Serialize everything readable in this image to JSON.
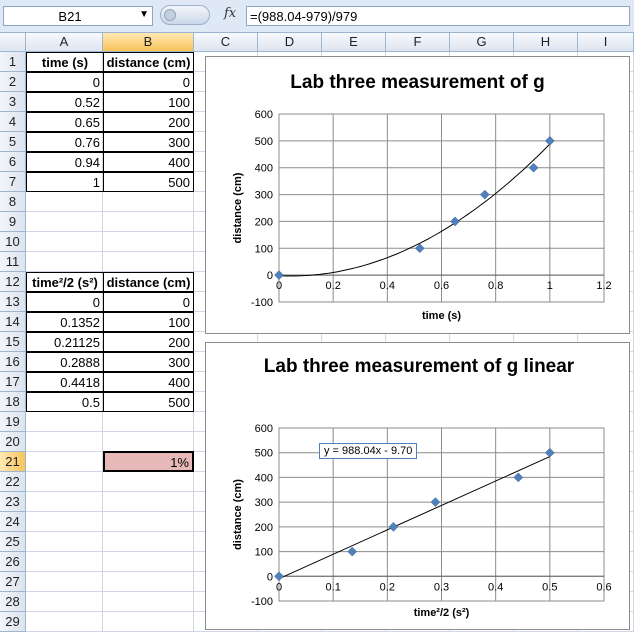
{
  "formula_bar": {
    "cell_ref": "B21",
    "fx_label": "fx",
    "formula": "=(988.04-979)/979"
  },
  "columns": [
    "A",
    "B",
    "C",
    "D",
    "E",
    "F",
    "G",
    "H",
    "I"
  ],
  "rows": [
    "1",
    "2",
    "3",
    "4",
    "5",
    "6",
    "7",
    "8",
    "9",
    "10",
    "11",
    "12",
    "13",
    "14",
    "15",
    "16",
    "17",
    "18",
    "19",
    "20",
    "21",
    "22",
    "23",
    "24",
    "25",
    "26",
    "27",
    "28",
    "29"
  ],
  "table1": {
    "headers": [
      "time (s)",
      "distance (cm)"
    ],
    "rows": [
      [
        "0",
        "0"
      ],
      [
        "0.52",
        "100"
      ],
      [
        "0.65",
        "200"
      ],
      [
        "0.76",
        "300"
      ],
      [
        "0.94",
        "400"
      ],
      [
        "1",
        "500"
      ]
    ]
  },
  "table2": {
    "headers": [
      "time²/2 (s²)",
      "distance (cm)"
    ],
    "rows": [
      [
        "0",
        "0"
      ],
      [
        "0.1352",
        "100"
      ],
      [
        "0.21125",
        "200"
      ],
      [
        "0.2888",
        "300"
      ],
      [
        "0.4418",
        "400"
      ],
      [
        "0.5",
        "500"
      ]
    ]
  },
  "active_cell_value": "1%",
  "chart_data": [
    {
      "type": "scatter",
      "title": "Lab three measurement of g",
      "xlabel": "time (s)",
      "ylabel": "distance (cm)",
      "x": [
        0,
        0.52,
        0.65,
        0.76,
        0.94,
        1
      ],
      "y": [
        0,
        100,
        200,
        300,
        400,
        500
      ],
      "xlim": [
        0,
        1.2
      ],
      "ylim": [
        -100,
        600
      ],
      "xticks": [
        "0",
        "0.2",
        "0.4",
        "0.6",
        "0.8",
        "1",
        "1.2"
      ],
      "yticks": [
        "-100",
        "0",
        "100",
        "200",
        "300",
        "400",
        "500",
        "600"
      ],
      "trendline": "polynomial",
      "marker_color": "#4f81bd",
      "grid": true
    },
    {
      "type": "scatter",
      "title": "Lab three measurement of g linear",
      "xlabel": "time²/2 (s²)",
      "ylabel": "distance (cm)",
      "x": [
        0,
        0.1352,
        0.21125,
        0.2888,
        0.4418,
        0.5
      ],
      "y": [
        0,
        100,
        200,
        300,
        400,
        500
      ],
      "xlim": [
        0,
        0.6
      ],
      "ylim": [
        -100,
        600
      ],
      "xticks": [
        "0",
        "0.1",
        "0.2",
        "0.3",
        "0.4",
        "0.5",
        "0.6"
      ],
      "yticks": [
        "-100",
        "0",
        "100",
        "200",
        "300",
        "400",
        "500",
        "600"
      ],
      "trendline": "linear",
      "trendline_slope": 988.04,
      "trendline_intercept": -9.7,
      "equation": "y = 988.04x - 9.70",
      "marker_color": "#4f81bd",
      "grid": true
    }
  ]
}
